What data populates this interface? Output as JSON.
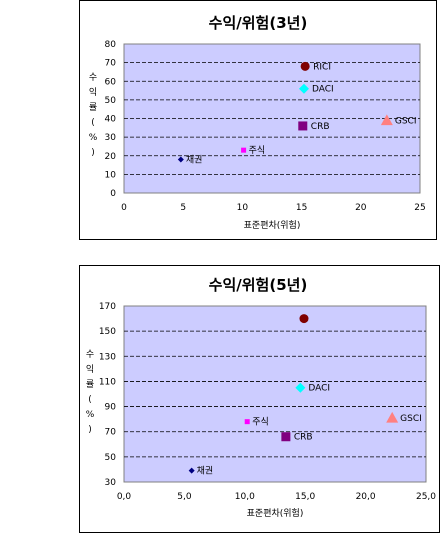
{
  "chart_data": [
    {
      "type": "scatter",
      "title": "수익/위험(3년)",
      "xlabel": "표준편차(위험)",
      "ylabel": [
        "수",
        "익",
        "률",
        "(",
        "%",
        ")"
      ],
      "xlim": [
        0,
        25
      ],
      "ylim": [
        0,
        80
      ],
      "xticks": [
        0,
        5,
        10,
        15,
        20,
        25
      ],
      "xtick_labels": [
        "0",
        "5",
        "10",
        "15",
        "20",
        "25"
      ],
      "yticks": [
        0,
        10,
        20,
        30,
        40,
        50,
        60,
        70,
        80
      ],
      "ytick_labels": [
        "0",
        "10",
        "20",
        "30",
        "40",
        "50",
        "60",
        "70",
        "80"
      ],
      "grid": "horizontal dashed",
      "plot_background": "#ccccff",
      "points": [
        {
          "label": "채권",
          "x": 4.8,
          "y": 18,
          "marker": "diamond",
          "color": "#000080",
          "size": "small"
        },
        {
          "label": "주식",
          "x": 10.1,
          "y": 23,
          "marker": "square",
          "color": "#ff00ff",
          "size": "small"
        },
        {
          "label": "CRB",
          "x": 15.1,
          "y": 36,
          "marker": "square",
          "color": "#800080",
          "size": "large"
        },
        {
          "label": "DACI",
          "x": 15.2,
          "y": 56,
          "marker": "diamond",
          "color": "#00ffff",
          "size": "large"
        },
        {
          "label": "RICI",
          "x": 15.3,
          "y": 68,
          "marker": "circle",
          "color": "#800000",
          "size": "large"
        },
        {
          "label": "GSCI",
          "x": 22.2,
          "y": 39,
          "marker": "triangle",
          "color": "#ff8080",
          "size": "large"
        }
      ]
    },
    {
      "type": "scatter",
      "title": "수익/위험(5년)",
      "xlabel": "표준편차(위험)",
      "ylabel": [
        "수",
        "익",
        "률",
        "(",
        "%",
        ")"
      ],
      "xlim": [
        0,
        25
      ],
      "ylim": [
        30,
        170
      ],
      "xticks": [
        0,
        5,
        10,
        15,
        20,
        25
      ],
      "xtick_labels": [
        "0,0",
        "5,0",
        "10,0",
        "15,0",
        "20,0",
        "25,0"
      ],
      "yticks": [
        30,
        50,
        70,
        90,
        110,
        130,
        150,
        170
      ],
      "ytick_labels": [
        "30",
        "50",
        "70",
        "90",
        "110",
        "130",
        "150",
        "170"
      ],
      "grid": "horizontal dashed",
      "plot_background": "#ccccff",
      "points": [
        {
          "label": "채권",
          "x": 5.6,
          "y": 39,
          "marker": "diamond",
          "color": "#000080",
          "size": "small"
        },
        {
          "label": "주식",
          "x": 10.2,
          "y": 78,
          "marker": "square",
          "color": "#ff00ff",
          "size": "small"
        },
        {
          "label": "CRB",
          "x": 13.4,
          "y": 66,
          "marker": "square",
          "color": "#800080",
          "size": "large"
        },
        {
          "label": "DACI",
          "x": 14.6,
          "y": 105,
          "marker": "diamond",
          "color": "#00ffff",
          "size": "large"
        },
        {
          "label": "",
          "x": 14.9,
          "y": 160,
          "marker": "circle",
          "color": "#800000",
          "size": "large"
        },
        {
          "label": "GSCI",
          "x": 22.2,
          "y": 81,
          "marker": "triangle",
          "color": "#ff8080",
          "size": "large"
        }
      ]
    }
  ]
}
